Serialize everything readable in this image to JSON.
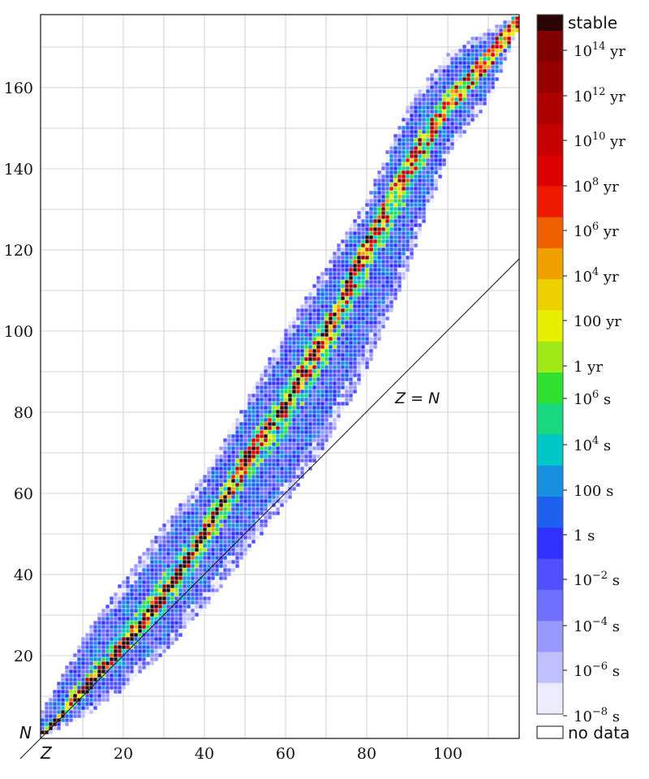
{
  "chart_data": {
    "type": "heatmap",
    "xlabel": "Z",
    "ylabel": "N",
    "xlim": [
      0,
      118
    ],
    "ylim": [
      0,
      178
    ],
    "x_ticks": [
      "20",
      "40",
      "60",
      "80",
      "100"
    ],
    "y_ticks": [
      "20",
      "40",
      "60",
      "80",
      "100",
      "120",
      "140",
      "160"
    ],
    "grid": true,
    "annotation": {
      "text_z": "Z",
      "text_eq": " = ",
      "text_n": "N"
    },
    "nuclide_region": {
      "Z": [
        0,
        10,
        20,
        30,
        40,
        50,
        60,
        70,
        80,
        90,
        100,
        110,
        117
      ],
      "N_min": [
        0,
        5,
        12,
        21,
        32,
        45,
        58,
        72,
        91,
        115,
        144,
        157,
        174
      ],
      "N_max": [
        6,
        24,
        38,
        52,
        64,
        82,
        100,
        116,
        132,
        155,
        168,
        174,
        177
      ],
      "N_stability_valley": [
        0,
        11,
        22,
        35,
        50,
        68,
        82,
        100,
        122,
        140,
        156,
        167,
        176
      ],
      "last_stable_Z": 83
    },
    "colorbar": {
      "labels": [
        {
          "base": "stable",
          "exp": "",
          "unit": ""
        },
        {
          "base": "10",
          "exp": "14",
          "unit": " yr"
        },
        {
          "base": "10",
          "exp": "12",
          "unit": " yr"
        },
        {
          "base": "10",
          "exp": "10",
          "unit": " yr"
        },
        {
          "base": "10",
          "exp": "8",
          "unit": " yr"
        },
        {
          "base": "10",
          "exp": "6",
          "unit": " yr"
        },
        {
          "base": "10",
          "exp": "4",
          "unit": " yr"
        },
        {
          "base": "100 yr",
          "exp": "",
          "unit": ""
        },
        {
          "base": "1 yr",
          "exp": "",
          "unit": ""
        },
        {
          "base": "10",
          "exp": "6",
          "unit": " s"
        },
        {
          "base": "10",
          "exp": "4",
          "unit": " s"
        },
        {
          "base": "100 s",
          "exp": "",
          "unit": ""
        },
        {
          "base": "1 s",
          "exp": "",
          "unit": ""
        },
        {
          "base": "10",
          "exp": "−2",
          "unit": " s"
        },
        {
          "base": "10",
          "exp": "−4",
          "unit": " s"
        },
        {
          "base": "10",
          "exp": "−6",
          "unit": " s"
        },
        {
          "base": "10",
          "exp": "−8",
          "unit": " s"
        }
      ],
      "no_data_label": "no data",
      "colors": [
        "#2a0505",
        "#800000",
        "#960000",
        "#ad0000",
        "#c40000",
        "#dc0000",
        "#ee1a00",
        "#ee6000",
        "#f0a000",
        "#ecd000",
        "#e8f000",
        "#a0e818",
        "#30e030",
        "#18d880",
        "#00c8c8",
        "#1890e0",
        "#2060f0",
        "#3030ff",
        "#5050ff",
        "#7070ff",
        "#9898ff",
        "#c0c0ff",
        "#ececfc"
      ]
    }
  }
}
